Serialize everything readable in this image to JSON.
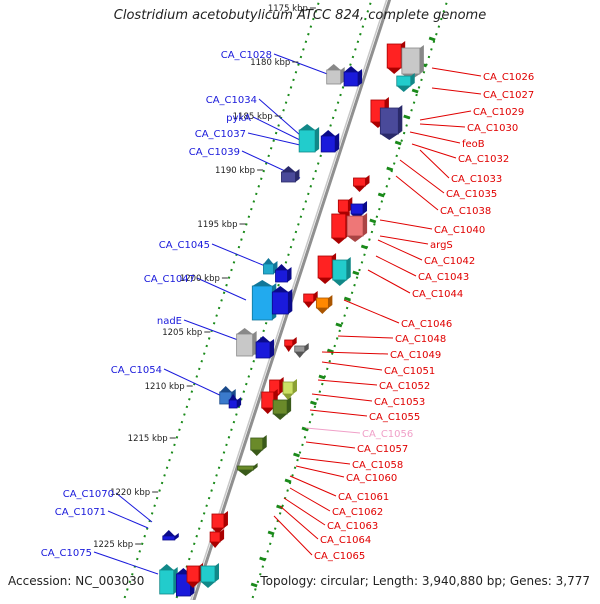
{
  "title": "Clostridium acetobutylicum ATCC 824, complete genome",
  "footer": {
    "accession": "Accession: NC_003030",
    "topology": "Topology: circular; Length: 3,940,880 bp; Genes: 3,777"
  },
  "colors": {
    "plus_label": "#1a1adb",
    "minus_label": "#e00000",
    "faded_label": "#f0a0c8",
    "axis": "#909090",
    "ticks_green": "#1a8a1a"
  },
  "ruler": {
    "unit": "kbp",
    "ticks": [
      {
        "kbp": 1175,
        "label": "1175 kbp"
      },
      {
        "kbp": 1180,
        "label": "1180 kbp"
      },
      {
        "kbp": 1185,
        "label": "1185 kbp"
      },
      {
        "kbp": 1190,
        "label": "1190 kbp"
      },
      {
        "kbp": 1195,
        "label": "1195 kbp"
      },
      {
        "kbp": 1200,
        "label": "1200 kbp"
      },
      {
        "kbp": 1205,
        "label": "1205 kbp"
      },
      {
        "kbp": 1210,
        "label": "1210 kbp"
      },
      {
        "kbp": 1215,
        "label": "1215 kbp"
      },
      {
        "kbp": 1220,
        "label": "1220 kbp"
      },
      {
        "kbp": 1225,
        "label": "1225 kbp"
      }
    ]
  },
  "plus_strand_labels": [
    "CA_C1028",
    "CA_C1034",
    "pykA",
    "CA_C1037",
    "CA_C1039",
    "CA_C1045",
    "CA_C1047",
    "nadE",
    "CA_C1054",
    "CA_C1070",
    "CA_C1071",
    "CA_C1075"
  ],
  "minus_strand_labels": [
    "CA_C1026",
    "CA_C1027",
    "CA_C1029",
    "CA_C1030",
    "feoB",
    "CA_C1032",
    "CA_C1033",
    "CA_C1035",
    "CA_C1038",
    "CA_C1040",
    "argS",
    "CA_C1042",
    "CA_C1043",
    "CA_C1044",
    "CA_C1046",
    "CA_C1048",
    "CA_C1049",
    "CA_C1051",
    "CA_C1052",
    "CA_C1053",
    "CA_C1055",
    "CA_C1056",
    "CA_C1057",
    "CA_C1058",
    "CA_C1060",
    "CA_C1061",
    "CA_C1062",
    "CA_C1063",
    "CA_C1064",
    "CA_C1065"
  ]
}
